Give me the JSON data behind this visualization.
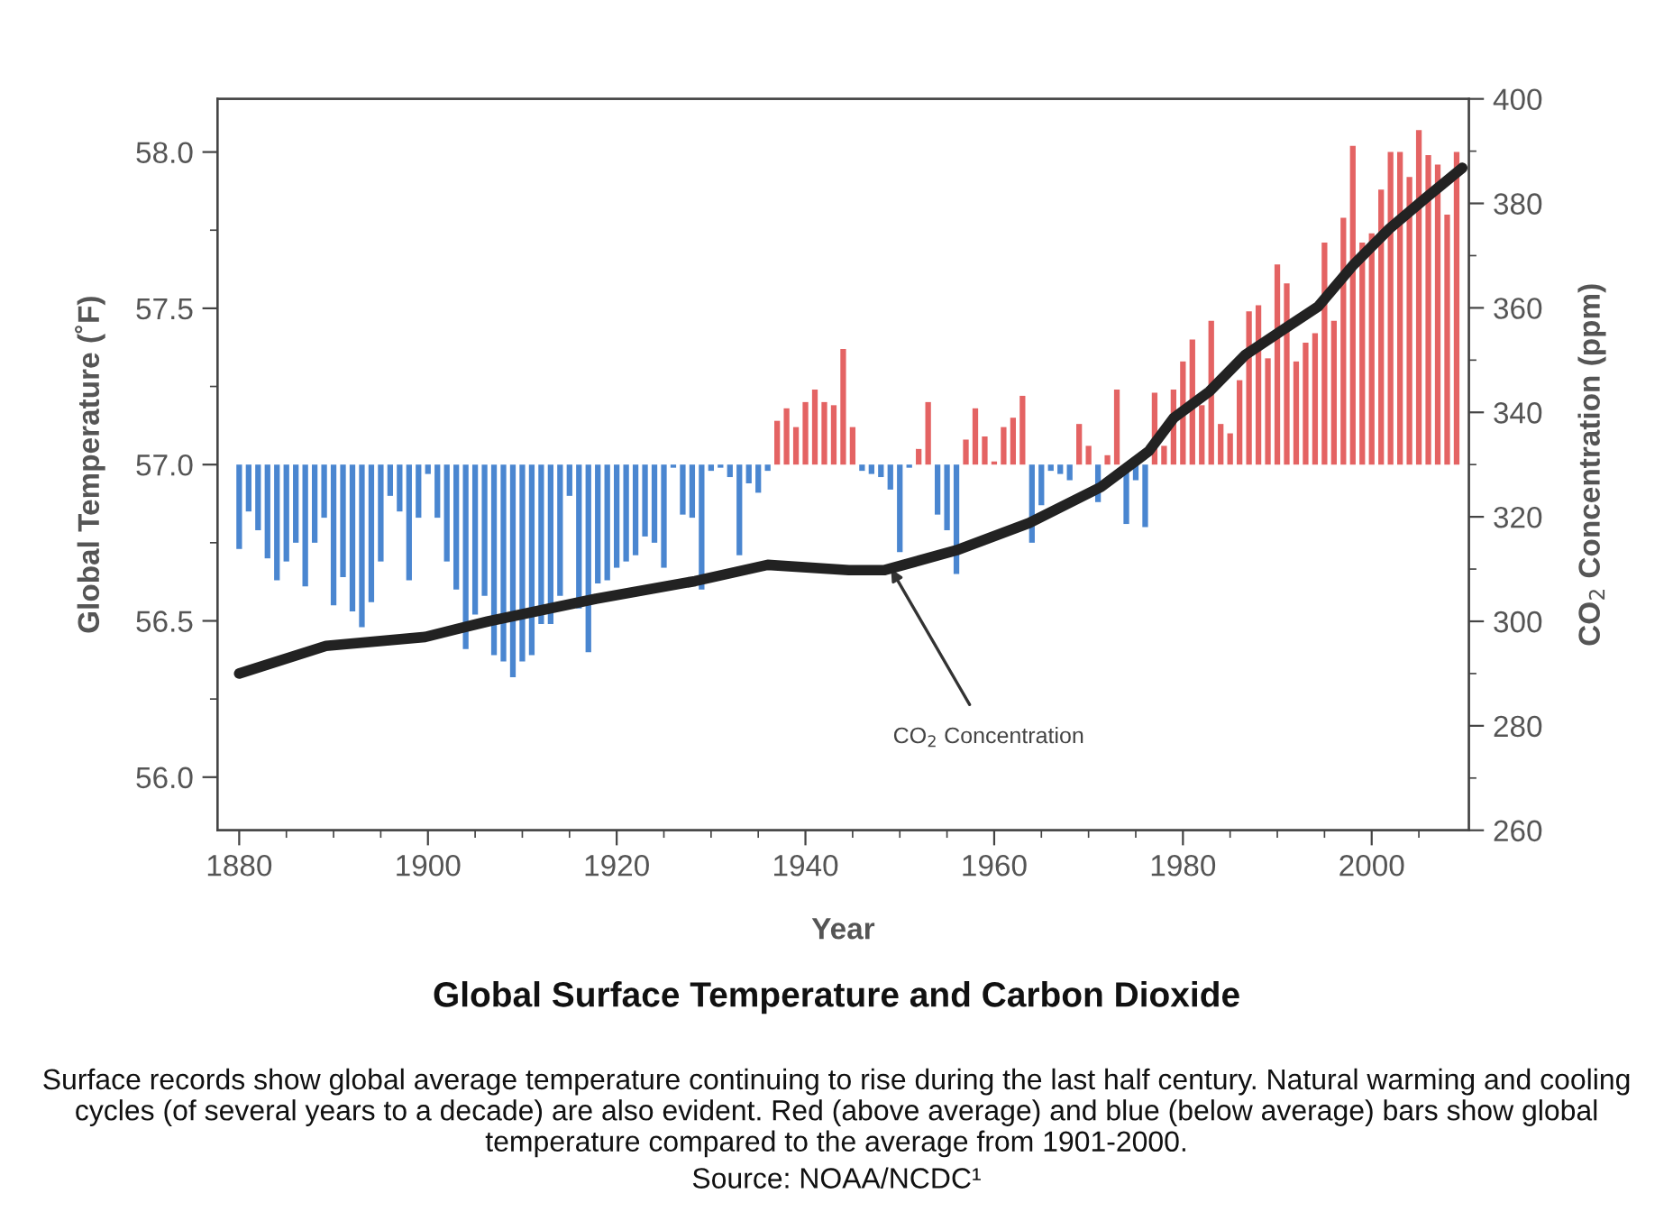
{
  "chart_data": {
    "type": "bar",
    "title": "Global Surface Temperature and Carbon Dioxide",
    "xlabel": "Year",
    "ylabel": "Global Temperature (˚F)",
    "y2label": "CO$_{2}$ Concentration (ppm)",
    "x": [
      1880,
      1881,
      1882,
      1883,
      1884,
      1885,
      1886,
      1887,
      1888,
      1889,
      1890,
      1891,
      1892,
      1893,
      1894,
      1895,
      1896,
      1897,
      1898,
      1899,
      1900,
      1901,
      1902,
      1903,
      1904,
      1905,
      1906,
      1907,
      1908,
      1909,
      1910,
      1911,
      1912,
      1913,
      1914,
      1915,
      1916,
      1917,
      1918,
      1919,
      1920,
      1921,
      1922,
      1923,
      1924,
      1925,
      1926,
      1927,
      1928,
      1929,
      1930,
      1931,
      1932,
      1933,
      1934,
      1935,
      1936,
      1937,
      1938,
      1939,
      1940,
      1941,
      1942,
      1943,
      1944,
      1945,
      1946,
      1947,
      1948,
      1949,
      1950,
      1951,
      1952,
      1953,
      1954,
      1955,
      1956,
      1957,
      1958,
      1959,
      1960,
      1961,
      1962,
      1963,
      1964,
      1965,
      1966,
      1967,
      1968,
      1969,
      1970,
      1971,
      1972,
      1973,
      1974,
      1975,
      1976,
      1977,
      1978,
      1979,
      1980,
      1981,
      1982,
      1983,
      1984,
      1985,
      1986,
      1987,
      1988,
      1989,
      1990,
      1991,
      1992,
      1993,
      1994,
      1995,
      1996,
      1997,
      1998,
      1999,
      2000,
      2001,
      2002,
      2003,
      2004,
      2005,
      2006,
      2007,
      2008,
      2009
    ],
    "series": [
      {
        "base": [
          57,
          57,
          57,
          57,
          57,
          57,
          57,
          57,
          57,
          57,
          57,
          57,
          57,
          57,
          57,
          57,
          57,
          57,
          57,
          57,
          57,
          57,
          57,
          57,
          57,
          57,
          57,
          57,
          57,
          57,
          57,
          57,
          57,
          57,
          57,
          57,
          57,
          57,
          57,
          57,
          57,
          57,
          57,
          57,
          57,
          57,
          57,
          57,
          57,
          57,
          57,
          57,
          57,
          57,
          57,
          57,
          57,
          57,
          57,
          57,
          57,
          57,
          57,
          57,
          57,
          57,
          57,
          57,
          57,
          57,
          57,
          57,
          57,
          57,
          57,
          57,
          57,
          57,
          57,
          57,
          57,
          57,
          57,
          57,
          57,
          57,
          57,
          57,
          57,
          57,
          57,
          57,
          57,
          57,
          57,
          57,
          57,
          57,
          57,
          57,
          57,
          57,
          57,
          57,
          57,
          57,
          57,
          57,
          57,
          57,
          57,
          57,
          57,
          57,
          57,
          57,
          57,
          57,
          57,
          57,
          57,
          57,
          57,
          57,
          57,
          57,
          57,
          57,
          57,
          57
        ],
        "values": [
          -0.27,
          -0.15,
          -0.21,
          -0.3,
          -0.37,
          -0.31,
          -0.25,
          -0.39,
          -0.25,
          -0.17,
          -0.45,
          -0.36,
          -0.47,
          -0.52,
          -0.44,
          -0.31,
          -0.1,
          -0.15,
          -0.37,
          -0.17,
          -0.03,
          -0.17,
          -0.31,
          -0.4,
          -0.59,
          -0.48,
          -0.42,
          -0.61,
          -0.63,
          -0.68,
          -0.63,
          -0.61,
          -0.51,
          -0.51,
          -0.42,
          -0.1,
          -0.46,
          -0.6,
          -0.38,
          -0.37,
          -0.33,
          -0.31,
          -0.29,
          -0.23,
          -0.25,
          -0.33,
          -0.01,
          -0.16,
          -0.17,
          -0.4,
          -0.02,
          -0.01,
          -0.04,
          -0.29,
          -0.06,
          -0.09,
          -0.02,
          0.14,
          0.18,
          0.12,
          0.2,
          0.24,
          0.2,
          0.19,
          0.37,
          0.12,
          -0.02,
          -0.03,
          -0.04,
          -0.08,
          -0.28,
          -0.01,
          0.05,
          0.2,
          -0.16,
          -0.21,
          -0.35,
          0.08,
          0.18,
          0.09,
          0.01,
          0.12,
          0.15,
          0.22,
          -0.25,
          -0.13,
          -0.02,
          -0.03,
          -0.05,
          0.13,
          0.06,
          -0.12,
          0.03,
          0.24,
          -0.19,
          -0.05,
          -0.2,
          0.23,
          0.06,
          0.24,
          0.33,
          0.4,
          0.19,
          0.46,
          0.13,
          0.1,
          0.27,
          0.49,
          0.51,
          0.34,
          0.64,
          0.58,
          0.33,
          0.39,
          0.42,
          0.71,
          0.46,
          0.79,
          1.02,
          0.71,
          0.74,
          0.88,
          1.0,
          1.0,
          0.92,
          1.07,
          0.99,
          0.96,
          0.8,
          1.0
        ],
        "colors": [
          "#4a86d0",
          "#4a86d0",
          "#4a86d0",
          "#4a86d0",
          "#4a86d0",
          "#4a86d0",
          "#4a86d0",
          "#4a86d0",
          "#4a86d0",
          "#4a86d0",
          "#4a86d0",
          "#4a86d0",
          "#4a86d0",
          "#4a86d0",
          "#4a86d0",
          "#4a86d0",
          "#4a86d0",
          "#4a86d0",
          "#4a86d0",
          "#4a86d0",
          "#4a86d0",
          "#4a86d0",
          "#4a86d0",
          "#4a86d0",
          "#4a86d0",
          "#4a86d0",
          "#4a86d0",
          "#4a86d0",
          "#4a86d0",
          "#4a86d0",
          "#4a86d0",
          "#4a86d0",
          "#4a86d0",
          "#4a86d0",
          "#4a86d0",
          "#4a86d0",
          "#4a86d0",
          "#4a86d0",
          "#4a86d0",
          "#4a86d0",
          "#4a86d0",
          "#4a86d0",
          "#4a86d0",
          "#4a86d0",
          "#4a86d0",
          "#4a86d0",
          "#4a86d0",
          "#4a86d0",
          "#4a86d0",
          "#4a86d0",
          "#4a86d0",
          "#4a86d0",
          "#4a86d0",
          "#4a86d0",
          "#4a86d0",
          "#4a86d0",
          "#4a86d0",
          "#e46363",
          "#e46363",
          "#e46363",
          "#e46363",
          "#e46363",
          "#e46363",
          "#e46363",
          "#e46363",
          "#e46363",
          "#4a86d0",
          "#4a86d0",
          "#4a86d0",
          "#4a86d0",
          "#4a86d0",
          "#4a86d0",
          "#e46363",
          "#e46363",
          "#4a86d0",
          "#4a86d0",
          "#4a86d0",
          "#e46363",
          "#e46363",
          "#e46363",
          "#e46363",
          "#e46363",
          "#e46363",
          "#e46363",
          "#4a86d0",
          "#4a86d0",
          "#4a86d0",
          "#4a86d0",
          "#4a86d0",
          "#e46363",
          "#e46363",
          "#4a86d0",
          "#e46363",
          "#e46363",
          "#4a86d0",
          "#4a86d0",
          "#4a86d0",
          "#e46363",
          "#e46363",
          "#e46363",
          "#e46363",
          "#e46363",
          "#e46363",
          "#e46363",
          "#e46363",
          "#e46363",
          "#e46363",
          "#e46363",
          "#e46363",
          "#e46363",
          "#e46363",
          "#e46363",
          "#e46363",
          "#e46363",
          "#e46363",
          "#e46363",
          "#e46363",
          "#e46363",
          "#e46363",
          "#e46363",
          "#e46363",
          "#e46363",
          "#e46363",
          "#e46363",
          "#e46363",
          "#e46363",
          "#e46363",
          "#e46363",
          "#e46363",
          "#e46363"
        ]
      },
      {
        "type": "line",
        "axis": "y2",
        "color": "#222222",
        "x": [
          1880,
          1889.2,
          1899.7,
          1906.4,
          1917.8,
          1928.3,
          1936,
          1944.6,
          1948.4,
          1956,
          1963.7,
          1971.3,
          1976.4,
          1979,
          1982.8,
          1986.6,
          1990.5,
          1994.3,
          1998.1,
          2001.9,
          2005.7,
          2009.6
        ],
        "values": [
          290,
          295.3,
          297,
          300,
          304.3,
          307.7,
          310.8,
          309.8,
          309.8,
          313.6,
          318.8,
          325.7,
          332.6,
          338.9,
          344,
          351,
          355.7,
          360.2,
          368.3,
          375.2,
          381,
          386.8
        ]
      }
    ],
    "xlim": [
      1877.7,
      2010.3
    ],
    "xticks": [
      1880,
      {
        "value": 1885,
        "label": null
      },
      {
        "value": 1890,
        "label": null
      },
      {
        "value": 1895,
        "label": null
      },
      1900,
      {
        "value": 1905,
        "label": null
      },
      {
        "value": 1910,
        "label": null
      },
      {
        "value": 1915,
        "label": null
      },
      1920,
      {
        "value": 1925,
        "label": null
      },
      {
        "value": 1930,
        "label": null
      },
      {
        "value": 1935,
        "label": null
      },
      1940,
      {
        "value": 1945,
        "label": null
      },
      {
        "value": 1950,
        "label": null
      },
      {
        "value": 1955,
        "label": null
      },
      1960,
      {
        "value": 1965,
        "label": null
      },
      {
        "value": 1970,
        "label": null
      },
      {
        "value": 1975,
        "label": null
      },
      1980,
      {
        "value": 1985,
        "label": null
      },
      {
        "value": 1990,
        "label": null
      },
      {
        "value": 1995,
        "label": null
      },
      2000,
      {
        "value": 2005,
        "label": null
      }
    ],
    "ylim": [
      55.83,
      58.17
    ],
    "yticks": [
      {
        "value": 56,
        "label": "56.0"
      },
      {
        "value": 56.25,
        "label": null
      },
      56.5,
      {
        "value": 56.75,
        "label": null
      },
      {
        "value": 57,
        "label": "57.0"
      },
      {
        "value": 57.25,
        "label": null
      },
      57.5,
      {
        "value": 57.75,
        "label": null
      },
      {
        "value": 58,
        "label": "58.0"
      }
    ],
    "y2lim": [
      260,
      400
    ],
    "y2ticks": [
      260,
      {
        "value": 270,
        "label": null
      },
      280,
      {
        "value": 290,
        "label": null
      },
      300,
      {
        "value": 310,
        "label": null
      },
      320,
      {
        "value": 330,
        "label": null
      },
      340,
      {
        "value": 350,
        "label": null
      },
      360,
      {
        "value": 370,
        "label": null
      },
      380,
      {
        "value": 390,
        "label": null
      },
      400
    ],
    "annotations": [
      {
        "text": "CO$_{2}$ Concentration",
        "x": 1948.8,
        "y": 56.68
      },
      "Surface records show global average temperature continuing to rise during the last half century. Natural warming and cooling cycles (of several years to a decade) are also evident. Red (above average) and blue (below average) bars show global temperature compared to the average from 1901-2000.",
      "Source: NOAA/NCDC¹"
    ]
  }
}
